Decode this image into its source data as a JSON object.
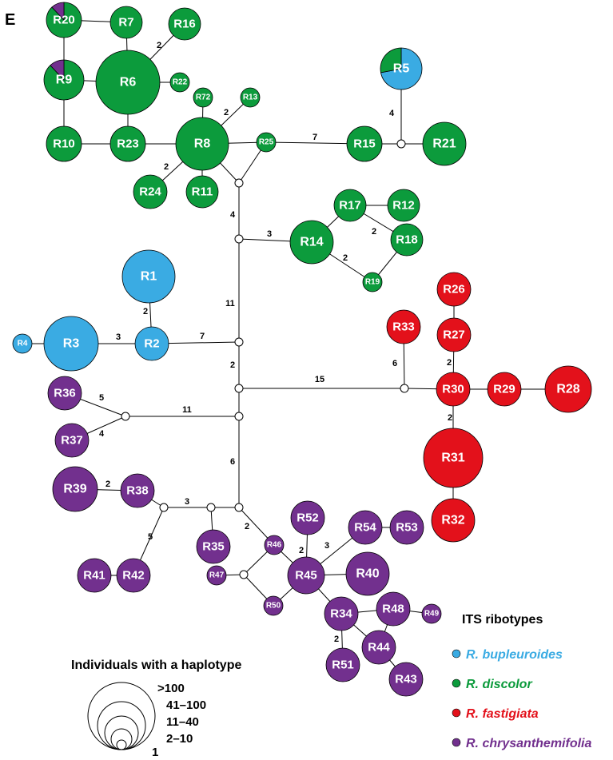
{
  "panel_label": "E",
  "colors": {
    "bupleuroides": "#3aabe3",
    "discolor": "#0c9b3c",
    "fastigiata": "#e3111b",
    "chrysanthemifolia": "#72308e"
  },
  "nodes": {
    "R1": {
      "label": "R1",
      "species": "bupleuroides"
    },
    "R2": {
      "label": "R2",
      "species": "bupleuroides"
    },
    "R3": {
      "label": "R3",
      "species": "bupleuroides"
    },
    "R4": {
      "label": "R4",
      "species": "bupleuroides"
    },
    "R5": {
      "label": "R5",
      "species": "bupleuroides",
      "pie": [
        [
          "bupleuroides",
          0.72
        ],
        [
          "discolor",
          0.28
        ]
      ]
    },
    "R6": {
      "label": "R6",
      "species": "discolor"
    },
    "R7": {
      "label": "R7",
      "species": "discolor"
    },
    "R8": {
      "label": "R8",
      "species": "discolor"
    },
    "R9": {
      "label": "R9",
      "species": "discolor",
      "pie": [
        [
          "discolor",
          0.88
        ],
        [
          "chrysanthemifolia",
          0.12
        ]
      ]
    },
    "R10": {
      "label": "R10",
      "species": "discolor"
    },
    "R11": {
      "label": "R11",
      "species": "discolor"
    },
    "R12": {
      "label": "R12",
      "species": "discolor"
    },
    "R13": {
      "label": "R13",
      "species": "discolor"
    },
    "R14": {
      "label": "R14",
      "species": "discolor"
    },
    "R15": {
      "label": "R15",
      "species": "discolor"
    },
    "R16": {
      "label": "R16",
      "species": "discolor"
    },
    "R17": {
      "label": "R17",
      "species": "discolor"
    },
    "R18": {
      "label": "R18",
      "species": "discolor"
    },
    "R19": {
      "label": "R19",
      "species": "discolor"
    },
    "R20": {
      "label": "R20",
      "species": "discolor",
      "pie": [
        [
          "discolor",
          0.88
        ],
        [
          "chrysanthemifolia",
          0.12
        ]
      ]
    },
    "R21": {
      "label": "R21",
      "species": "discolor"
    },
    "R22": {
      "label": "R22",
      "species": "discolor"
    },
    "R23": {
      "label": "R23",
      "species": "discolor"
    },
    "R24": {
      "label": "R24",
      "species": "discolor"
    },
    "R25": {
      "label": "R25",
      "species": "discolor"
    },
    "R72": {
      "label": "R72",
      "species": "discolor"
    },
    "R26": {
      "label": "R26",
      "species": "fastigiata"
    },
    "R27": {
      "label": "R27",
      "species": "fastigiata"
    },
    "R28": {
      "label": "R28",
      "species": "fastigiata"
    },
    "R29": {
      "label": "R29",
      "species": "fastigiata"
    },
    "R30": {
      "label": "R30",
      "species": "fastigiata"
    },
    "R31": {
      "label": "R31",
      "species": "fastigiata"
    },
    "R32": {
      "label": "R32",
      "species": "fastigiata"
    },
    "R33": {
      "label": "R33",
      "species": "fastigiata"
    },
    "R34": {
      "label": "R34",
      "species": "chrysanthemifolia"
    },
    "R35": {
      "label": "R35",
      "species": "chrysanthemifolia"
    },
    "R36": {
      "label": "R36",
      "species": "chrysanthemifolia"
    },
    "R37": {
      "label": "R37",
      "species": "chrysanthemifolia"
    },
    "R38": {
      "label": "R38",
      "species": "chrysanthemifolia"
    },
    "R39": {
      "label": "R39",
      "species": "chrysanthemifolia"
    },
    "R40": {
      "label": "R40",
      "species": "chrysanthemifolia"
    },
    "R41": {
      "label": "R41",
      "species": "chrysanthemifolia"
    },
    "R42": {
      "label": "R42",
      "species": "chrysanthemifolia"
    },
    "R43": {
      "label": "R43",
      "species": "chrysanthemifolia"
    },
    "R44": {
      "label": "R44",
      "species": "chrysanthemifolia"
    },
    "R45": {
      "label": "R45",
      "species": "chrysanthemifolia"
    },
    "R46": {
      "label": "R46",
      "species": "chrysanthemifolia"
    },
    "R47": {
      "label": "R47",
      "species": "chrysanthemifolia"
    },
    "R48": {
      "label": "R48",
      "species": "chrysanthemifolia"
    },
    "R49": {
      "label": "R49",
      "species": "chrysanthemifolia"
    },
    "R50": {
      "label": "R50",
      "species": "chrysanthemifolia"
    },
    "R51": {
      "label": "R51",
      "species": "chrysanthemifolia"
    },
    "R52": {
      "label": "R52",
      "species": "chrysanthemifolia"
    },
    "R53": {
      "label": "R53",
      "species": "chrysanthemifolia"
    },
    "R54": {
      "label": "R54",
      "species": "chrysanthemifolia"
    }
  },
  "edges": [
    [
      "R20",
      "R7",
      ""
    ],
    [
      "R20",
      "R9",
      ""
    ],
    [
      "R7",
      "R6",
      ""
    ],
    [
      "R6",
      "R16",
      "2"
    ],
    [
      "R9",
      "R6",
      ""
    ],
    [
      "R6",
      "R22",
      ""
    ],
    [
      "R9",
      "R10",
      ""
    ],
    [
      "R6",
      "R23",
      ""
    ],
    [
      "R10",
      "R23",
      ""
    ],
    [
      "R23",
      "R8",
      ""
    ],
    [
      "R8",
      "R72",
      ""
    ],
    [
      "R8",
      "R13",
      "2"
    ],
    [
      "R8",
      "R24",
      "2"
    ],
    [
      "R8",
      "R11",
      ""
    ],
    [
      "R8",
      "R25",
      ""
    ],
    [
      "R8",
      "j1",
      ""
    ],
    [
      "R25",
      "j1",
      ""
    ],
    [
      "R25",
      "R15",
      "7"
    ],
    [
      "R15",
      "j2",
      ""
    ],
    [
      "j2",
      "R21",
      ""
    ],
    [
      "j2",
      "R5",
      "4"
    ],
    [
      "j1",
      "j3",
      "4"
    ],
    [
      "j3",
      "R14",
      "3"
    ],
    [
      "R14",
      "R17",
      ""
    ],
    [
      "R14",
      "R19",
      "2"
    ],
    [
      "R17",
      "R12",
      ""
    ],
    [
      "R17",
      "R18",
      "2"
    ],
    [
      "R18",
      "R19",
      ""
    ],
    [
      "j3",
      "j4",
      "11"
    ],
    [
      "j4",
      "R2",
      "7"
    ],
    [
      "R2",
      "R1",
      "2"
    ],
    [
      "R2",
      "R3",
      "3"
    ],
    [
      "R3",
      "R4",
      ""
    ],
    [
      "j4",
      "j5",
      "2"
    ],
    [
      "j5",
      "j6",
      "15"
    ],
    [
      "j6",
      "R33",
      "6"
    ],
    [
      "j6",
      "R30",
      ""
    ],
    [
      "R30",
      "R27",
      "2"
    ],
    [
      "R27",
      "R26",
      ""
    ],
    [
      "R30",
      "R29",
      ""
    ],
    [
      "R29",
      "R28",
      ""
    ],
    [
      "R30",
      "R31",
      "2"
    ],
    [
      "R31",
      "R32",
      ""
    ],
    [
      "j5",
      "j7",
      ""
    ],
    [
      "j7",
      "j8",
      "11"
    ],
    [
      "j8",
      "R36",
      "5"
    ],
    [
      "j8",
      "R37",
      "4"
    ],
    [
      "j7",
      "j9",
      "6"
    ],
    [
      "j9",
      "j10",
      "3"
    ],
    [
      "j10",
      "R35",
      ""
    ],
    [
      "j10",
      "j11",
      ""
    ],
    [
      "j11",
      "R38",
      ""
    ],
    [
      "R38",
      "R39",
      "2"
    ],
    [
      "j11",
      "R42",
      "5"
    ],
    [
      "R42",
      "R41",
      ""
    ],
    [
      "j9",
      "R46",
      "2"
    ],
    [
      "R46",
      "R45",
      ""
    ],
    [
      "j12",
      "R46",
      ""
    ],
    [
      "j12",
      "R47",
      ""
    ],
    [
      "j12",
      "R50",
      ""
    ],
    [
      "R50",
      "R45",
      ""
    ],
    [
      "R45",
      "R52",
      "2"
    ],
    [
      "R45",
      "R54",
      "3"
    ],
    [
      "R54",
      "R53",
      ""
    ],
    [
      "R45",
      "R40",
      ""
    ],
    [
      "R45",
      "R34",
      ""
    ],
    [
      "R34",
      "R48",
      ""
    ],
    [
      "R48",
      "R49",
      ""
    ],
    [
      "R34",
      "R44",
      ""
    ],
    [
      "R48",
      "R44",
      ""
    ],
    [
      "R34",
      "R51",
      "2"
    ],
    [
      "R44",
      "R43",
      ""
    ]
  ],
  "legend": {
    "title": "ITS ribotypes",
    "items": [
      {
        "species": "bupleuroides",
        "label": "R. bupleuroides"
      },
      {
        "species": "discolor",
        "label": "R. discolor"
      },
      {
        "species": "fastigiata",
        "label": "R. fastigiata"
      },
      {
        "species": "chrysanthemifolia",
        "label": "R. chrysanthemifolia"
      }
    ]
  },
  "size_legend": {
    "title": "Individuals with a haplotype",
    "labels": [
      ">100",
      "41–100",
      "11–40",
      "2–10",
      "1"
    ]
  }
}
